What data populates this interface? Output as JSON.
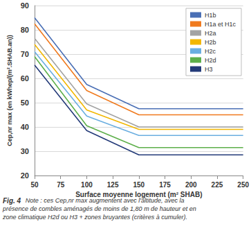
{
  "chart_data": {
    "type": "line",
    "x_label": "Surface moyenne logement (m² SHAB)",
    "y_label": "Cep,nr max (en kWhep/(m².SHAB.an))",
    "annotations": [
      "Fig. 4",
      "Note : ces Cep,nr max augmentent avec l'altitude, avec la présence de combles aménagés de moins de 1,80 m de hauteur et en zone climatique H2d ou H3 + zones bruyantes (critères à cumuler)."
    ],
    "x": [
      50,
      100,
      150,
      200,
      250
    ],
    "series": [
      {
        "name": "H1b",
        "color": "#4a6fb5",
        "values": [
          85,
          57.5,
          47.5,
          47.5,
          47.5
        ]
      },
      {
        "name": "H1a et H1c",
        "color": "#f07a1e",
        "values": [
          82.5,
          55,
          45,
          45,
          45
        ]
      },
      {
        "name": "H2a",
        "color": "#a3a3a3",
        "values": [
          76.5,
          49.5,
          40,
          40,
          40
        ]
      },
      {
        "name": "H2b",
        "color": "#f2b700",
        "values": [
          74,
          47,
          39,
          39,
          39
        ]
      },
      {
        "name": "H2c",
        "color": "#6aaee0",
        "values": [
          71,
          44.5,
          36.5,
          36.5,
          36.5
        ]
      },
      {
        "name": "H2d",
        "color": "#5daf4a",
        "values": [
          69,
          40.5,
          31.5,
          31.5,
          31.5
        ]
      },
      {
        "name": "H3",
        "color": "#233a78",
        "values": [
          65.5,
          38.5,
          28.5,
          28.5,
          28.5
        ]
      }
    ],
    "xlim": [
      50,
      250
    ],
    "xticks": [
      50,
      75,
      100,
      125,
      150,
      175,
      200,
      225,
      250
    ],
    "ylim": [
      20,
      90
    ],
    "yticks": [
      20,
      30,
      40,
      50,
      60,
      70,
      80,
      90
    ],
    "grid": true,
    "legend": "upper right",
    "line_style": "solid"
  }
}
